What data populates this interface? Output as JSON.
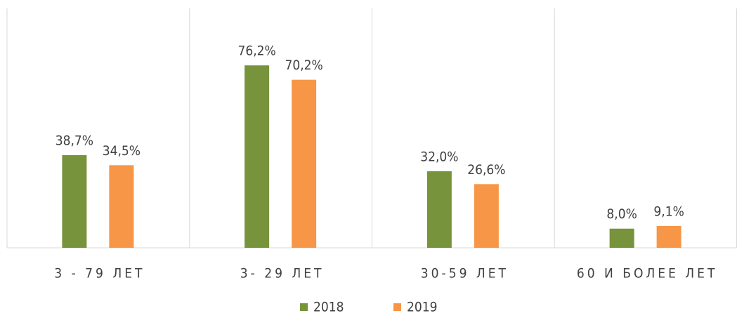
{
  "chart_data": {
    "type": "bar",
    "categories": [
      "3 - 79 ЛЕТ",
      "3- 29 ЛЕТ",
      "30-59 ЛЕТ",
      "60 И БОЛЕЕ ЛЕТ"
    ],
    "series": [
      {
        "name": "2018",
        "color": "#77933c",
        "values": [
          38.7,
          76.2,
          32.0,
          8.0
        ],
        "value_labels": [
          "38,7%",
          "76,2%",
          "32,0%",
          "8,0%"
        ]
      },
      {
        "name": "2019",
        "color": "#f79646",
        "values": [
          34.5,
          70.2,
          26.6,
          9.1
        ],
        "value_labels": [
          "34,5%",
          "70,2%",
          "26,6%",
          "9,1%"
        ]
      }
    ],
    "ylim": [
      0,
      100
    ]
  }
}
